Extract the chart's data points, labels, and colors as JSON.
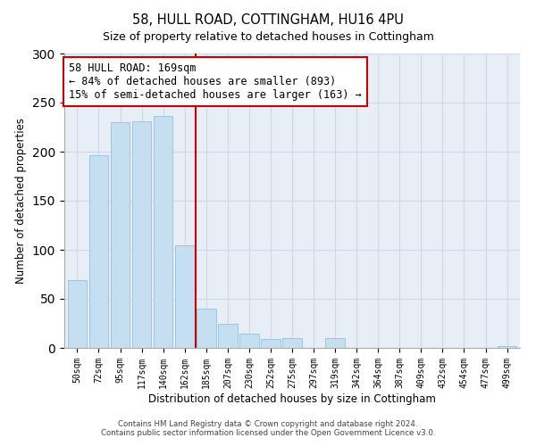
{
  "title": "58, HULL ROAD, COTTINGHAM, HU16 4PU",
  "subtitle": "Size of property relative to detached houses in Cottingham",
  "xlabel": "Distribution of detached houses by size in Cottingham",
  "ylabel": "Number of detached properties",
  "bar_labels": [
    "50sqm",
    "72sqm",
    "95sqm",
    "117sqm",
    "140sqm",
    "162sqm",
    "185sqm",
    "207sqm",
    "230sqm",
    "252sqm",
    "275sqm",
    "297sqm",
    "319sqm",
    "342sqm",
    "364sqm",
    "387sqm",
    "409sqm",
    "432sqm",
    "454sqm",
    "477sqm",
    "499sqm"
  ],
  "bar_heights": [
    69,
    196,
    230,
    231,
    236,
    105,
    40,
    25,
    15,
    9,
    10,
    0,
    10,
    0,
    0,
    0,
    0,
    0,
    0,
    0,
    2
  ],
  "bar_color": "#c6dff0",
  "bar_edge_color": "#a0c4dc",
  "reference_line_x": 5.5,
  "annotation_title": "58 HULL ROAD: 169sqm",
  "annotation_line1": "← 84% of detached houses are smaller (893)",
  "annotation_line2": "15% of semi-detached houses are larger (163) →",
  "ylim": [
    0,
    300
  ],
  "yticks": [
    0,
    50,
    100,
    150,
    200,
    250,
    300
  ],
  "footer1": "Contains HM Land Registry data © Crown copyright and database right 2024.",
  "footer2": "Contains public sector information licensed under the Open Government Licence v3.0.",
  "ref_line_color": "#cc0000",
  "annotation_box_facecolor": "#ffffff",
  "annotation_box_edgecolor": "#cc0000",
  "grid_color": "#d0d8e8",
  "bg_color": "#e8eef5"
}
